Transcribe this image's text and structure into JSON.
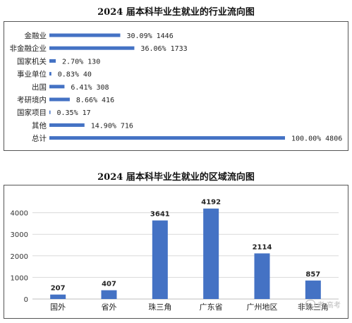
{
  "chart_data": [
    {
      "type": "bar",
      "orientation": "horizontal",
      "title": "2024 届本科毕业生就业的行业流向图",
      "categories": [
        "金融业",
        "非金融企业",
        "国家机关",
        "事业单位",
        "出国",
        "考研境内",
        "国家项目",
        "其他",
        "总计"
      ],
      "values": [
        1446,
        1733,
        130,
        40,
        308,
        416,
        17,
        716,
        4806
      ],
      "labels": [
        "30.09% 1446",
        "36.06% 1733",
        "2.70% 130",
        "0.83% 40",
        "6.41% 308",
        "8.66% 416",
        "0.35% 17",
        "14.90% 716",
        "100.00% 4806"
      ],
      "grid": false,
      "bar_color": "#4472C4"
    },
    {
      "type": "bar",
      "orientation": "vertical",
      "title": "2024 届本科毕业生就业的区域流向图",
      "categories": [
        "国外",
        "省外",
        "珠三角",
        "广东省",
        "广州地区",
        "非珠三角"
      ],
      "values": [
        207,
        407,
        3641,
        4192,
        2114,
        857
      ],
      "ylim": [
        0,
        5000
      ],
      "yticks": [
        0,
        1000,
        2000,
        3000,
        4000
      ],
      "grid": true,
      "bar_color": "#4472C4"
    }
  ],
  "watermark": {
    "text": "老 高考"
  }
}
